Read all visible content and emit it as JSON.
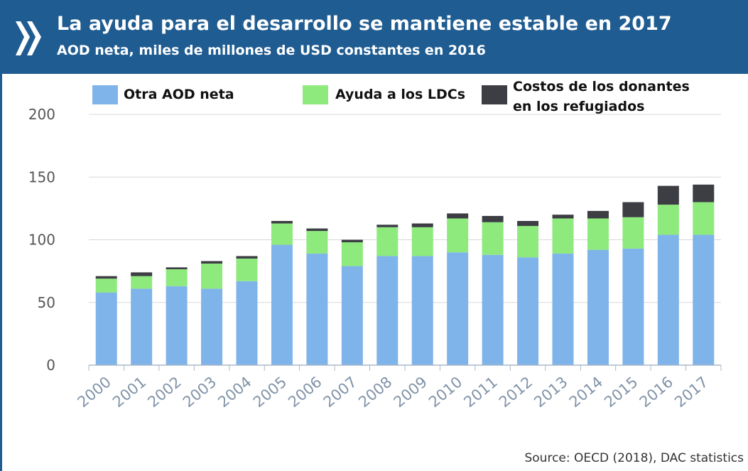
{
  "chart_data": {
    "type": "stacked_bar",
    "title": "La ayuda para el desarrollo se mantiene estable en 2017",
    "subtitle": "AOD neta, miles de millones de USD constantes en 2016",
    "source": "Source: OECD (2018), DAC statistics",
    "categories": [
      "2000",
      "2001",
      "2002",
      "2003",
      "2004",
      "2005",
      "2006",
      "2007",
      "2008",
      "2009",
      "2010",
      "2011",
      "2012",
      "2013",
      "2014",
      "2015",
      "2016",
      "2017"
    ],
    "series": [
      {
        "name": "Otra AOD neta",
        "color": "#7fb4ea",
        "values": [
          58,
          61,
          63,
          61,
          67,
          96,
          89,
          79,
          87,
          87,
          90,
          88,
          86,
          89,
          92,
          93,
          104,
          104
        ]
      },
      {
        "name": "Ayuda a los LDCs",
        "color": "#8eea7c",
        "values": [
          11,
          10,
          13.5,
          20,
          18,
          17,
          18,
          19,
          23,
          23,
          27,
          26,
          25,
          28,
          25,
          25,
          24,
          26
        ]
      },
      {
        "name": "Costos de los donantes en los refugiados",
        "color": "#3c3e44",
        "values": [
          2,
          3,
          1.5,
          2,
          2,
          2,
          2,
          2,
          2,
          3,
          4,
          5,
          4,
          3,
          6,
          12,
          15,
          14
        ]
      }
    ],
    "ylim": [
      0,
      200
    ],
    "yticks": [
      0,
      50,
      100,
      150,
      200
    ],
    "grid": true
  }
}
